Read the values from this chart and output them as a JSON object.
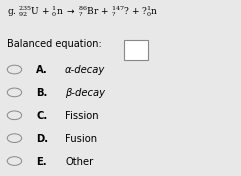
{
  "background_color": "#e8e8e8",
  "balanced_label": "Balanced equation:",
  "options": [
    {
      "letter": "A",
      "text": "α-decay",
      "italic": true
    },
    {
      "letter": "B",
      "text": "β-decay",
      "italic": true
    },
    {
      "letter": "C",
      "text": "Fission",
      "italic": false
    },
    {
      "letter": "D",
      "text": "Fusion",
      "italic": false
    },
    {
      "letter": "E",
      "text": "Other",
      "italic": false
    }
  ],
  "font_size_eq": 6.5,
  "font_size_label": 7.0,
  "font_size_options": 7.2,
  "text_color": "#000000",
  "box_color": "#ffffff",
  "box_edge_color": "#888888",
  "circle_color": "#888888",
  "eq_prefix": "g.",
  "eq_parts": [
    {
      "text": "235",
      "sup": true,
      "sub": false,
      "size": 4.5
    },
    {
      "text": "92",
      "sup": false,
      "sub": true,
      "size": 4.5
    }
  ]
}
